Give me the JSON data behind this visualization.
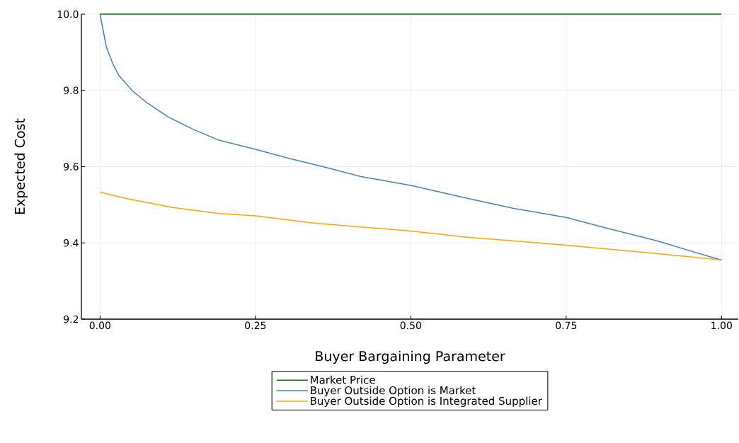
{
  "chart_data": {
    "type": "line",
    "xlabel": "Buyer Bargaining Parameter",
    "ylabel": "Expected Cost",
    "xlim": [
      -0.03,
      1.027
    ],
    "ylim": [
      9.2,
      10.0
    ],
    "xticks": [
      {
        "value": 0,
        "label": "0.00"
      },
      {
        "value": 0.25,
        "label": "0.25"
      },
      {
        "value": 0.5,
        "label": "0.50"
      },
      {
        "value": 0.75,
        "label": "0.75"
      },
      {
        "value": 1,
        "label": "1.00"
      }
    ],
    "yticks": [
      9.2,
      9.4,
      9.6,
      9.8,
      {
        "value": 10.0,
        "label": "10.0"
      }
    ],
    "grid": true,
    "legend": "bottom",
    "series": [
      {
        "name": "Market Price",
        "color": "#008000",
        "x": [
          0,
          1
        ],
        "values": [
          10.0,
          10.0
        ]
      },
      {
        "name": "Buyer Outside Option is Market",
        "color": "#4682b4",
        "x": [
          0,
          0.0103,
          0.0205,
          0.03,
          0.052,
          0.075,
          0.109,
          0.147,
          0.192,
          0.249,
          0.306,
          0.363,
          0.42,
          0.5,
          0.591,
          0.667,
          0.75,
          0.819,
          0.895,
          0.952,
          1.0
        ],
        "values": [
          10.0,
          9.913,
          9.87,
          9.84,
          9.799,
          9.768,
          9.731,
          9.7,
          9.669,
          9.646,
          9.621,
          9.598,
          9.574,
          9.551,
          9.517,
          9.49,
          9.467,
          9.437,
          9.406,
          9.378,
          9.355
        ]
      },
      {
        "name": "Buyer Outside Option is Integrated Supplier",
        "color": "#ffa500",
        "x": [
          0,
          0.041,
          0.117,
          0.192,
          0.25,
          0.344,
          0.5,
          0.591,
          0.75,
          0.895,
          1.0
        ],
        "values": [
          9.533,
          9.517,
          9.493,
          9.477,
          9.471,
          9.452,
          9.431,
          9.415,
          9.394,
          9.372,
          9.355
        ]
      }
    ]
  }
}
